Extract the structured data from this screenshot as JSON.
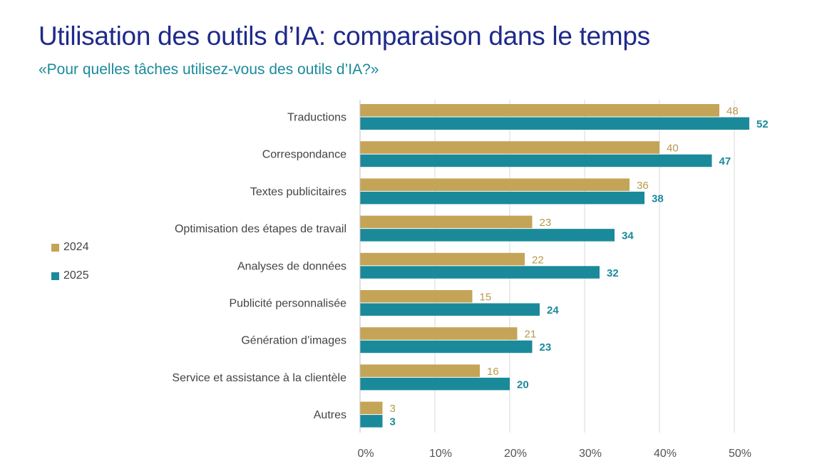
{
  "header": {
    "title": "Utilisation des outils d’IA: comparaison dans le temps",
    "subtitle": "«Pour quelles tâches utilisez-vous des outils d’IA?»"
  },
  "chart_data": {
    "type": "bar",
    "orientation": "horizontal",
    "categories": [
      "Traductions",
      "Correspondance",
      "Textes publicitaires",
      "Optimisation des étapes de travail",
      "Analyses de données",
      "Publicité personnalisée",
      "Génération d’images",
      "Service et assistance à la clientèle",
      "Autres"
    ],
    "series": [
      {
        "name": "2024",
        "color": "#c4a457",
        "label_color": "#b8994a",
        "values": [
          48,
          40,
          36,
          23,
          22,
          15,
          21,
          16,
          3
        ]
      },
      {
        "name": "2025",
        "color": "#1a8a9b",
        "label_color": "#1a8a9b",
        "values": [
          52,
          47,
          38,
          34,
          32,
          24,
          23,
          20,
          3
        ]
      }
    ],
    "x_ticks": [
      "0%",
      "10%",
      "20%",
      "30%",
      "40%",
      "50%"
    ],
    "xlim": [
      0,
      50
    ],
    "grid": true,
    "legend_position": "left"
  }
}
